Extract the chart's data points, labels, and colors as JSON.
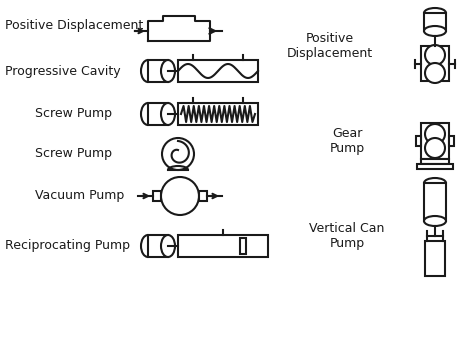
{
  "bg_color": "#ffffff",
  "line_color": "#1a1a1a",
  "lw": 1.5,
  "labels": {
    "positive_displacement": "Positive Displacement",
    "progressive_cavity": "Progressive Cavity",
    "screw_pump1": "Screw Pump",
    "screw_pump2": "Screw Pump",
    "vacuum_pump": "Vacuum Pump",
    "reciprocating_pump": "Reciprocating Pump",
    "positive_displacement_v": "Positive\nDisplacement",
    "gear_pump": "Gear\nPump",
    "vertical_can_pump": "Vertical Can\nPump"
  },
  "font_size": 9
}
